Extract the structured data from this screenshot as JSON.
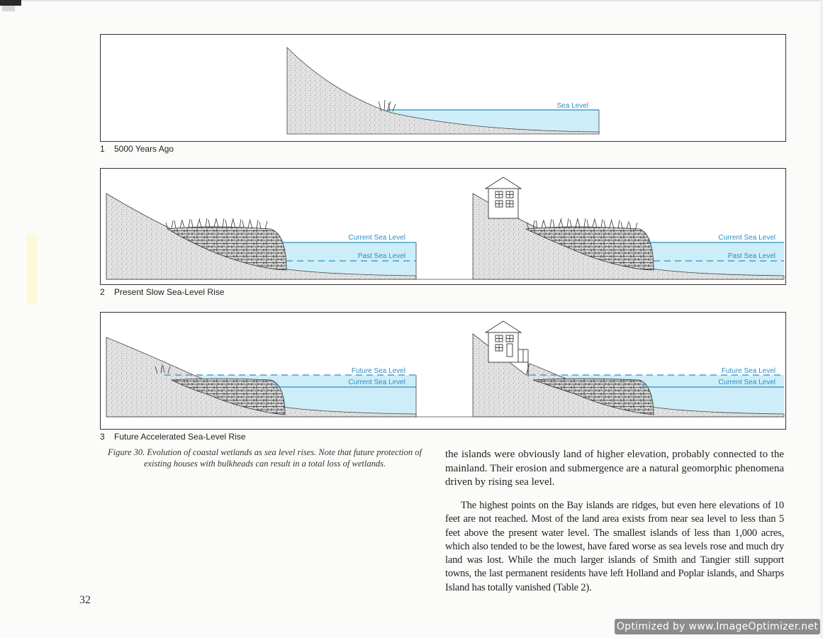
{
  "figure": {
    "panels": [
      {
        "number": "1",
        "caption": "5000 Years Ago"
      },
      {
        "number": "2",
        "caption": "Present Slow Sea-Level Rise"
      },
      {
        "number": "3",
        "caption": "Future Accelerated Sea-Level Rise"
      }
    ],
    "labels": {
      "sea_level": "Sea Level",
      "current_sea_level": "Current Sea Level",
      "past_sea_level": "Past Sea Level",
      "future_sea_level": "Future Sea Level"
    },
    "caption": "Figure 30. Evolution of coastal wetlands as sea level rises. Note that future protection of existing houses with bulkheads can result in a total loss of wetlands."
  },
  "body": {
    "paragraph1": "the islands were obviously land of higher elevation, probably connected to the mainland. Their erosion and submergence are a natural geomorphic phenomena driven by rising sea level.",
    "paragraph2": "The highest points on the Bay islands are ridges, but even here elevations of 10 feet are not reached. Most of the land area exists from near sea level to less than 5 feet above the present water level. The smallest islands of less than 1,000 acres, which also tended to be the lowest, have fared worse as sea levels rose and much dry land was lost. While the much larger islands of Smith and Tangier still support towns, the last permanent residents have left Holland and Poplar islands, and Sharps Island has totally vanished (Table 2)."
  },
  "page_number": "32",
  "watermark": "Optimized by www.ImageOptimizer.net",
  "colors": {
    "water": "#cdeef8",
    "water_line": "#2b8ec2",
    "land": "#d6d6d6"
  }
}
